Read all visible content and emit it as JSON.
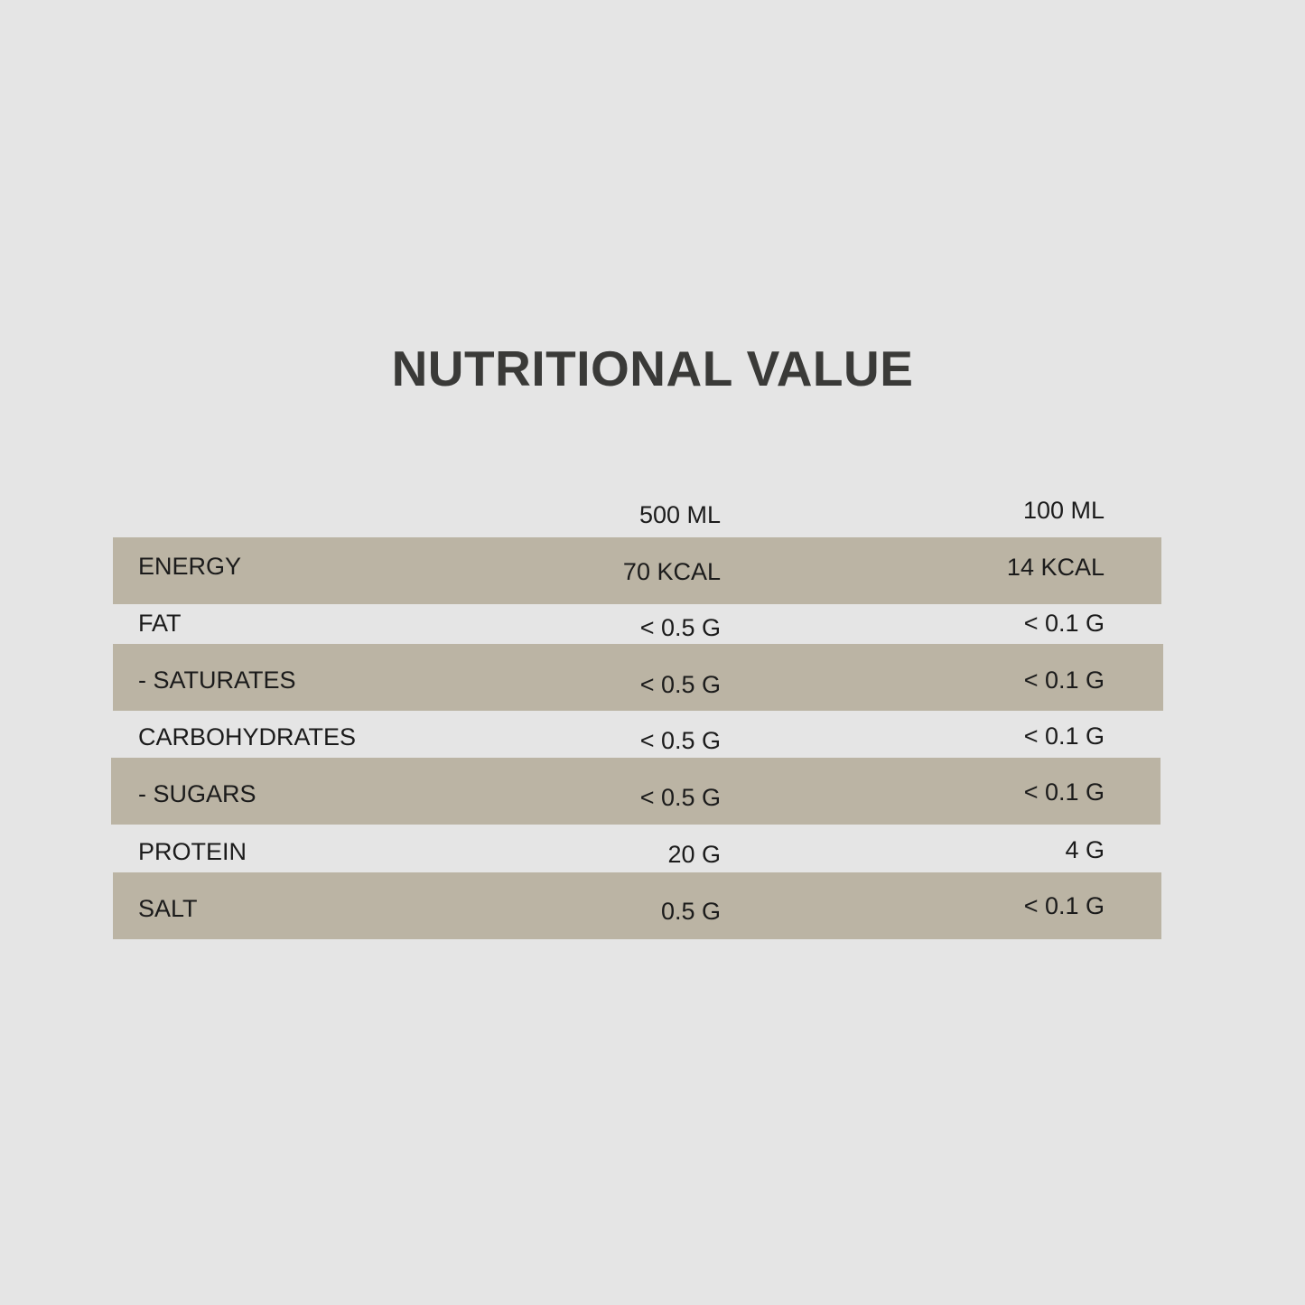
{
  "title": "NUTRITIONAL VALUE",
  "colors": {
    "background": "#e5e5e5",
    "row_shade": "#bbb4a4",
    "title": "#3a3a38"
  },
  "table": {
    "headers": {
      "per_500ml": "500 ML",
      "per_100ml": "100 ML"
    },
    "rows": [
      {
        "label": "ENERGY",
        "per_500ml": "70 KCAL",
        "per_100ml": "14 KCAL"
      },
      {
        "label": "FAT",
        "per_500ml": "< 0.5 G",
        "per_100ml": "< 0.1 G"
      },
      {
        "label": "- SATURATES",
        "per_500ml": "< 0.5 G",
        "per_100ml": "< 0.1 G"
      },
      {
        "label": "CARBOHYDRATES",
        "per_500ml": "< 0.5 G",
        "per_100ml": "< 0.1 G"
      },
      {
        "label": "- SUGARS",
        "per_500ml": "< 0.5 G",
        "per_100ml": "< 0.1 G"
      },
      {
        "label": "PROTEIN",
        "per_500ml": "20 G",
        "per_100ml": "4 G"
      },
      {
        "label": "SALT",
        "per_500ml": "0.5 G",
        "per_100ml": "< 0.1 G"
      }
    ]
  }
}
